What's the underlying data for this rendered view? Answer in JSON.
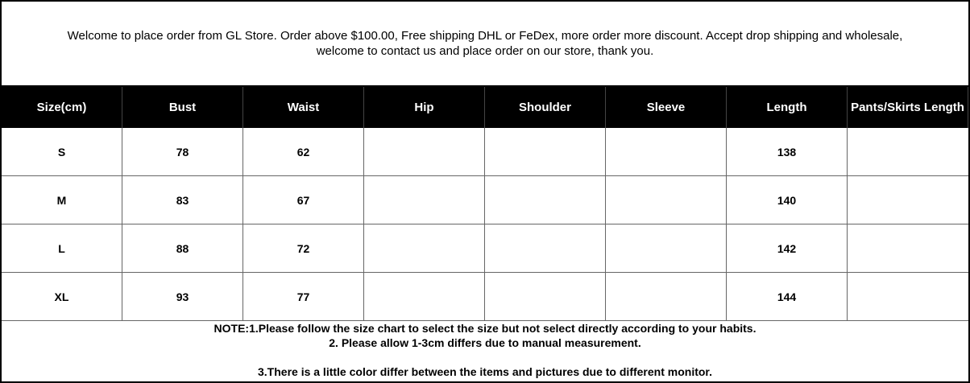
{
  "header": {
    "lines": [
      "Welcome to place order from GL Store. Order above $100.00, Free shipping DHL or FeDex, more order more discount. Accept drop shipping and wholesale,",
      "welcome to contact us and place order on our store, thank you."
    ]
  },
  "table": {
    "columns": [
      "Size(cm)",
      "Bust",
      "Waist",
      "Hip",
      "Shoulder",
      "Sleeve",
      "Length",
      "Pants/Skirts Length"
    ],
    "rows": [
      [
        "S",
        78,
        62,
        null,
        null,
        null,
        138,
        null
      ],
      [
        "M",
        83,
        67,
        null,
        null,
        null,
        140,
        null
      ],
      [
        "L",
        88,
        72,
        null,
        null,
        null,
        142,
        null
      ],
      [
        "XL",
        93,
        77,
        null,
        null,
        null,
        144,
        null
      ]
    ]
  },
  "notes": [
    "NOTE:1.Please follow the size chart to select the size but not select directly according to your habits.",
    "2. Please allow 1-3cm differs due to manual measurement.",
    "3.There is a little color differ between the items and pictures due to different monitor."
  ]
}
